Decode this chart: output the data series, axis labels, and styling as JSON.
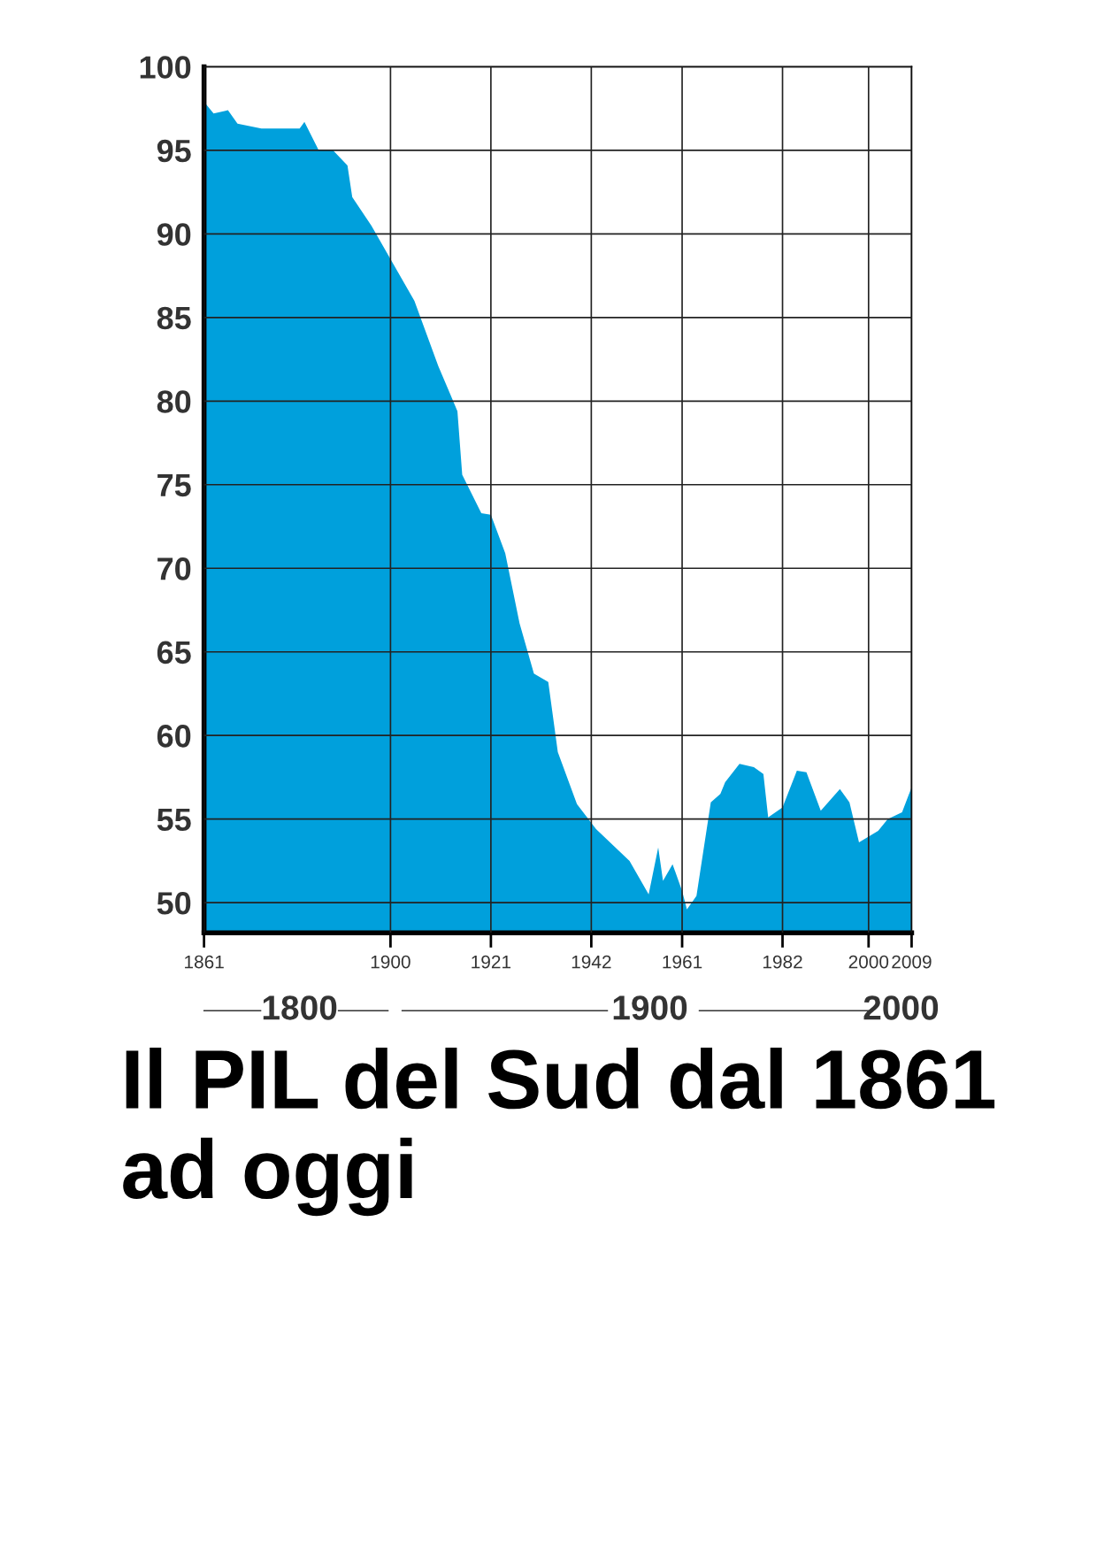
{
  "chart_data": {
    "type": "area",
    "title": "Il PIL del Sud dal 1861 ad oggi",
    "x": [
      1861,
      1863,
      1866,
      1868,
      1873,
      1881,
      1882,
      1885,
      1888,
      1891,
      1892,
      1896,
      1901,
      1905,
      1910,
      1914,
      1915,
      1919,
      1921,
      1924,
      1927,
      1930,
      1933,
      1935,
      1939,
      1943,
      1950,
      1954,
      1956,
      1957,
      1959,
      1961,
      1962,
      1964,
      1967,
      1969,
      1970,
      1973,
      1976,
      1978,
      1979,
      1982,
      1985,
      1987,
      1990,
      1994,
      1996,
      1998,
      2002,
      2004,
      2007,
      2009
    ],
    "series": [
      {
        "color": "#00a0dc",
        "values": [
          97.9,
          97.2,
          97.4,
          96.6,
          96.3,
          96.3,
          96.7,
          95.0,
          95.0,
          94.1,
          92.2,
          90.5,
          88.0,
          86.0,
          82.1,
          79.4,
          75.6,
          73.3,
          73.2,
          70.9,
          66.7,
          63.7,
          63.2,
          59.0,
          55.9,
          54.4,
          52.5,
          50.5,
          53.3,
          51.3,
          52.3,
          50.7,
          49.6,
          50.4,
          56.0,
          56.5,
          57.2,
          58.3,
          58.1,
          57.7,
          55.1,
          55.7,
          57.9,
          57.8,
          55.5,
          56.8,
          56.0,
          53.6,
          54.3,
          55.0,
          55.4,
          56.9
        ]
      }
    ],
    "xlim": [
      1861,
      2009
    ],
    "xticks": [
      1861,
      1900,
      1921,
      1942,
      1961,
      1982,
      2000,
      2009
    ],
    "ylim": [
      48.2,
      100
    ],
    "yticks": [
      50,
      55,
      60,
      65,
      70,
      75,
      80,
      85,
      90,
      95,
      100
    ],
    "grid": true,
    "legend": false,
    "annotations": [
      "1800",
      "1900",
      "2000"
    ]
  }
}
